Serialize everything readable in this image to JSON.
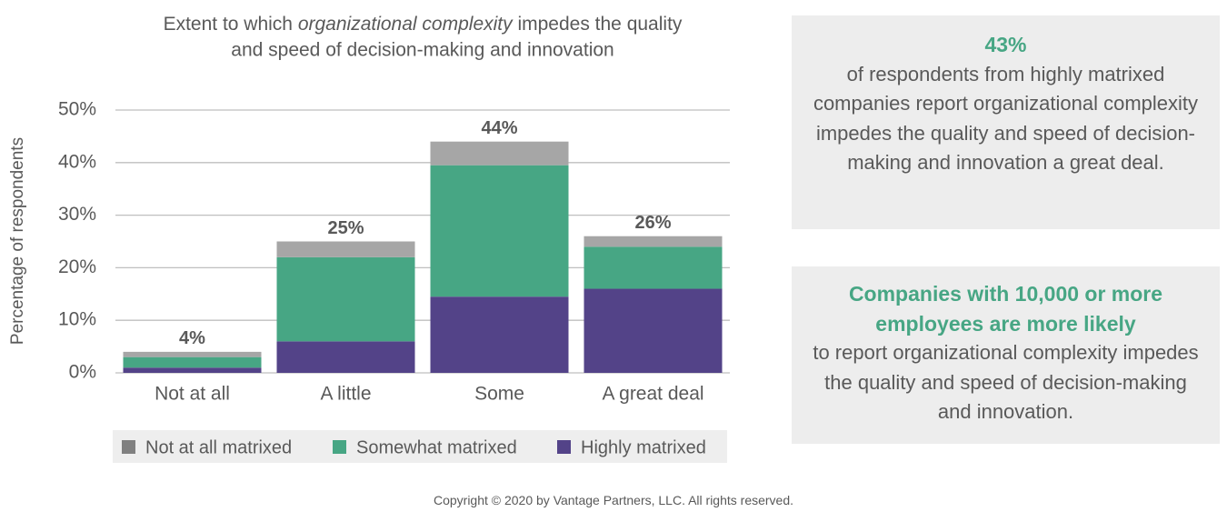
{
  "chart_data": {
    "type": "stacked-bar",
    "title_lines": [
      [
        "Extent to which ",
        "organizational complexity",
        " impedes the quality"
      ],
      [
        "and speed of decision-making and innovation"
      ]
    ],
    "y_label": "Percentage of respondents",
    "categories": [
      "Not at all",
      "A little",
      "Some",
      "A great deal"
    ],
    "series": [
      {
        "name": "Highly matrixed",
        "color": "#534388",
        "values": [
          1,
          6,
          14.5,
          16
        ]
      },
      {
        "name": "Somewhat matrixed",
        "color": "#47a684",
        "values": [
          2,
          16,
          25,
          8
        ]
      },
      {
        "name": "Not at all matrixed",
        "color": "#a6a6a6",
        "values": [
          1,
          3,
          4.5,
          2
        ]
      }
    ],
    "totals": [
      4,
      25,
      44,
      26
    ],
    "total_labels": [
      "4%",
      "25%",
      "44%",
      "26%"
    ],
    "ylim": [
      0,
      50
    ],
    "yticks": [
      {
        "value": 0,
        "label": "0%"
      },
      {
        "value": 10,
        "label": "10%"
      },
      {
        "value": 20,
        "label": "20%"
      },
      {
        "value": 30,
        "label": "30%"
      },
      {
        "value": 40,
        "label": "40%"
      },
      {
        "value": 50,
        "label": "50%"
      }
    ],
    "grid": true
  },
  "panels": [
    {
      "highlight": "43%",
      "text": "of respondents from highly matrixed companies report organizational complexity impedes the quality and speed of decision-making and innovation a great deal."
    },
    {
      "highlight": "Companies with 10,000 or more employees are more likely",
      "text": "to report organizational complexity impedes the quality and speed of decision-making and innovation."
    }
  ],
  "footer": "Copyright © 2020 by Vantage Partners, LLC. All rights reserved."
}
